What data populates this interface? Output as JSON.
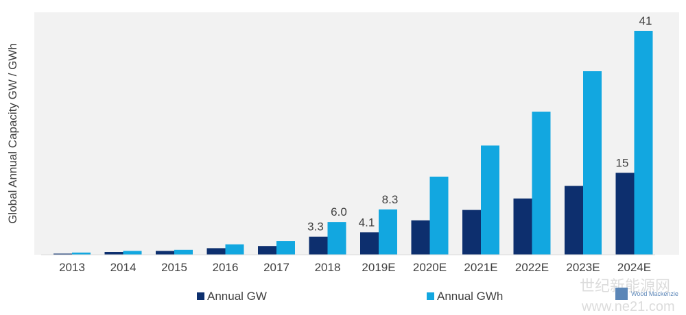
{
  "chart_data": {
    "type": "bar",
    "title": "",
    "xlabel": "",
    "ylabel": "Global Annual Capacity GW / GWh",
    "categories": [
      "2013",
      "2014",
      "2015",
      "2016",
      "2017",
      "2018",
      "2019E",
      "2020E",
      "2021E",
      "2022E",
      "2023E",
      "2024E"
    ],
    "series": [
      {
        "name": "Annual GW",
        "color": "#0d2f6e",
        "values": [
          0.2,
          0.5,
          0.7,
          1.2,
          1.6,
          3.3,
          4.1,
          6.3,
          8.2,
          10.3,
          12.6,
          15
        ],
        "labels": [
          "",
          "",
          "",
          "",
          "",
          "3.3",
          "4.1",
          "",
          "",
          "",
          "",
          "15"
        ]
      },
      {
        "name": "Annual GWh",
        "color": "#12a7e0",
        "values": [
          0.4,
          0.7,
          0.9,
          1.9,
          2.5,
          6.0,
          8.3,
          14.3,
          20.0,
          26.2,
          33.6,
          41
        ],
        "labels": [
          "",
          "",
          "",
          "",
          "",
          "6.0",
          "8.3",
          "",
          "",
          "",
          "",
          "41"
        ]
      }
    ],
    "ylim": [
      0,
      43
    ],
    "grid": false,
    "legend_position": "bottom"
  },
  "watermark": {
    "text": "世纪新能源网",
    "subtext": "Wood Mackenzie",
    "url": "www.ne21.com"
  }
}
